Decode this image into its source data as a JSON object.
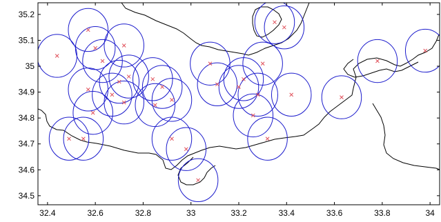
{
  "chart_data": {
    "type": "scatter",
    "xlim": [
      32.36,
      34.04
    ],
    "ylim": [
      34.465,
      35.245
    ],
    "xticks": [
      32.4,
      32.6,
      32.8,
      33,
      33.2,
      33.4,
      33.6,
      33.8,
      34
    ],
    "xtick_labels": [
      "32.4",
      "32.6",
      "32.8",
      "33",
      "33.2",
      "33.4",
      "33.6",
      "33.8",
      "34"
    ],
    "yticks": [
      34.5,
      34.6,
      34.7,
      34.8,
      34.9,
      35,
      35.1,
      35.2
    ],
    "ytick_labels": [
      "34.5",
      "34.6",
      "34.7",
      "34.8",
      "34.9",
      "35",
      "35.1",
      "35.2"
    ],
    "grid": false,
    "circle_radius_deg": 0.083,
    "colors": {
      "circle": "#1a1acc",
      "marker": "#e0505a",
      "coastline": "#000000",
      "axes": "#000000"
    },
    "points": [
      {
        "x": 32.44,
        "y": 35.04
      },
      {
        "x": 32.57,
        "y": 35.14
      },
      {
        "x": 32.6,
        "y": 35.07
      },
      {
        "x": 32.72,
        "y": 35.08
      },
      {
        "x": 32.63,
        "y": 35.02
      },
      {
        "x": 32.57,
        "y": 34.91
      },
      {
        "x": 32.67,
        "y": 34.89
      },
      {
        "x": 32.7,
        "y": 34.94
      },
      {
        "x": 32.74,
        "y": 34.96
      },
      {
        "x": 32.72,
        "y": 34.86
      },
      {
        "x": 32.59,
        "y": 34.82
      },
      {
        "x": 32.49,
        "y": 34.72
      },
      {
        "x": 32.55,
        "y": 34.72
      },
      {
        "x": 32.84,
        "y": 34.95
      },
      {
        "x": 32.85,
        "y": 34.85
      },
      {
        "x": 32.88,
        "y": 34.92
      },
      {
        "x": 32.92,
        "y": 34.87
      },
      {
        "x": 32.92,
        "y": 34.72
      },
      {
        "x": 32.98,
        "y": 34.68
      },
      {
        "x": 33.03,
        "y": 34.56
      },
      {
        "x": 33.08,
        "y": 35.01
      },
      {
        "x": 33.11,
        "y": 34.93
      },
      {
        "x": 33.2,
        "y": 34.92
      },
      {
        "x": 33.22,
        "y": 34.95
      },
      {
        "x": 33.28,
        "y": 34.89
      },
      {
        "x": 33.3,
        "y": 35.01
      },
      {
        "x": 33.26,
        "y": 34.81
      },
      {
        "x": 33.32,
        "y": 34.72
      },
      {
        "x": 33.42,
        "y": 34.89
      },
      {
        "x": 33.35,
        "y": 35.17
      },
      {
        "x": 33.39,
        "y": 35.15
      },
      {
        "x": 33.63,
        "y": 34.88
      },
      {
        "x": 33.78,
        "y": 35.02
      },
      {
        "x": 33.98,
        "y": 35.06
      }
    ]
  }
}
